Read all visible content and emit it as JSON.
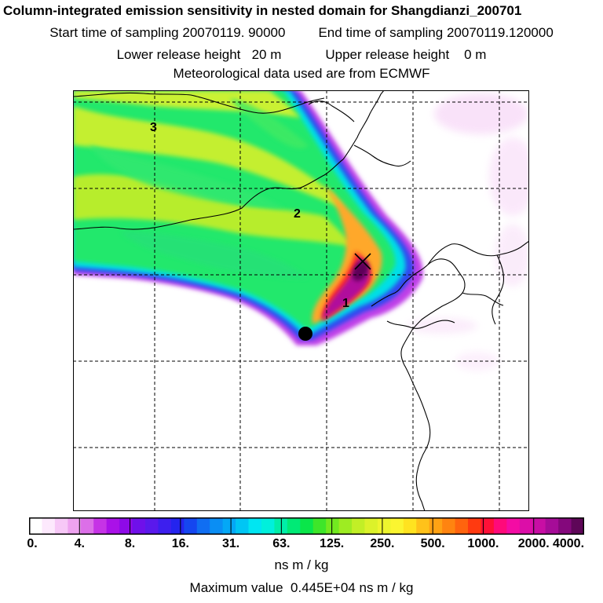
{
  "header": {
    "title": "Column-integrated emission sensitivity in nested domain for Shangdianzi_200701",
    "start_label": "Start time of sampling",
    "start_value": "20070119. 90000",
    "end_label": "End time of sampling",
    "end_value": "20070119.120000",
    "lower_label": "Lower release height",
    "lower_value": "20 m",
    "upper_label": "Upper release height",
    "upper_value": "0 m",
    "met_note": "Meteorological data used are from ECMWF"
  },
  "map": {
    "region_labels": [
      "1",
      "2",
      "3"
    ],
    "markers": {
      "release_site": "filled-circle",
      "max_location": "cross"
    },
    "gridlines": "dashed",
    "coastline_color": "#000000"
  },
  "colorbar": {
    "tick_labels": [
      "0.",
      "4.",
      "8.",
      "16.",
      "31.",
      "63.",
      "125.",
      "250.",
      "500.",
      "1000.",
      "2000.",
      "4000."
    ],
    "colors": [
      "#ffffff",
      "#fde9fd",
      "#f7c8f7",
      "#eea3f0",
      "#dc6fe8",
      "#c633e6",
      "#aa11e8",
      "#8e0ae8",
      "#6f10ea",
      "#5a19ec",
      "#3d1fee",
      "#2424ee",
      "#1546f0",
      "#106ef2",
      "#0a8ef4",
      "#04a8f6",
      "#00c6f4",
      "#00e6f2",
      "#00f0dc",
      "#00eea8",
      "#00ea76",
      "#0ae64a",
      "#3ee62a",
      "#72ea20",
      "#9eec22",
      "#c2ef26",
      "#dcf22a",
      "#eef52e",
      "#fbf530",
      "#ffe320",
      "#ffc21a",
      "#ffa214",
      "#ff8410",
      "#ff640e",
      "#ff3a10",
      "#ff1038",
      "#ff0a7a",
      "#f40ca4",
      "#dc0ea8",
      "#c80ea4",
      "#a60c98",
      "#84087c",
      "#5e0658"
    ],
    "units": "ns m / kg"
  },
  "footer": {
    "max_label": "Maximum value",
    "max_value": "0.445E+04 ns m / kg"
  }
}
